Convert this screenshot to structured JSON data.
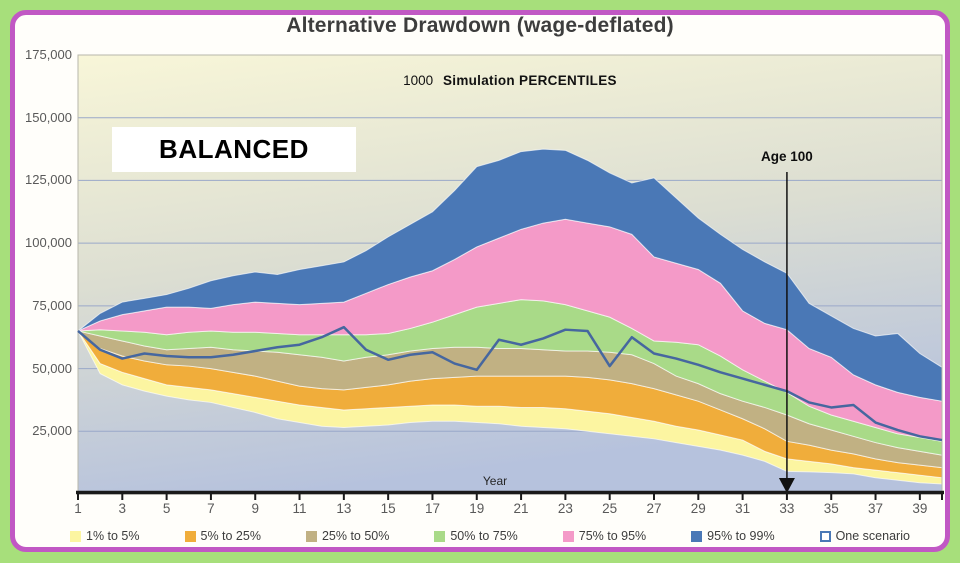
{
  "title": "Alternative Drawdown (wage-deflated)",
  "subtitle": {
    "prefix": "1000",
    "main": "Simulation PERCENTILES"
  },
  "portfolio_label": "BALANCED",
  "annotation": {
    "label": "Age 100",
    "year": 33
  },
  "axes": {
    "x_label": "Year",
    "x_ticks": [
      1,
      3,
      5,
      7,
      9,
      11,
      13,
      15,
      17,
      19,
      21,
      23,
      25,
      27,
      29,
      31,
      33,
      35,
      37,
      39
    ],
    "y_ticks": [
      "175,000",
      "150,000",
      "125,000",
      "100,000",
      "75,000",
      "50,000",
      "25,000"
    ],
    "y_max": 175000,
    "y_step": 25000
  },
  "colors": {
    "page_bg": "#a7df7b",
    "card_border": "#c158c4",
    "card_bg": "#fffefa",
    "plot_gradient": [
      "#f8f6d8",
      "#dcded2",
      "#b6c2dd"
    ],
    "gridline": "#9aa8c9",
    "plot_border": "#b7b7ab",
    "axis": "#1a1a1a",
    "scenario": "#46679f"
  },
  "legend": [
    {
      "label": "1% to 5%",
      "color": "#fcf5a1",
      "swatch": "fill"
    },
    {
      "label": "5% to 25%",
      "color": "#f0ad3b",
      "swatch": "fill"
    },
    {
      "label": "25% to 50%",
      "color": "#c1b183",
      "swatch": "fill"
    },
    {
      "label": "50% to 75%",
      "color": "#a9da88",
      "swatch": "fill"
    },
    {
      "label": "75% to 95%",
      "color": "#f49ac8",
      "swatch": "fill"
    },
    {
      "label": "95% to 99%",
      "color": "#4a78b6",
      "swatch": "fill"
    },
    {
      "label": "One scenario",
      "color": "#4a78b6",
      "swatch": "outline"
    }
  ],
  "chart_data": {
    "type": "area",
    "title": "Alternative Drawdown (wage-deflated)",
    "xlabel": "Year",
    "ylabel": "",
    "ylim": [
      0,
      175000
    ],
    "grid": true,
    "legend_position": "bottom",
    "x": [
      1,
      2,
      3,
      4,
      5,
      6,
      7,
      8,
      9,
      10,
      11,
      12,
      13,
      14,
      15,
      16,
      17,
      18,
      19,
      20,
      21,
      22,
      23,
      24,
      25,
      26,
      27,
      28,
      29,
      30,
      31,
      32,
      33,
      34,
      35,
      36,
      37,
      38,
      39,
      40
    ],
    "percentiles": {
      "p1": [
        65000,
        48000,
        43500,
        41000,
        39000,
        37500,
        36500,
        34500,
        32500,
        30000,
        28500,
        27000,
        26500,
        27000,
        27500,
        28500,
        29000,
        29000,
        28500,
        28000,
        27000,
        26500,
        26000,
        25000,
        24000,
        23000,
        22000,
        20500,
        19000,
        17500,
        15500,
        13000,
        9000,
        8800,
        8500,
        8000,
        6500,
        5500,
        4500,
        4000
      ],
      "p5": [
        65000,
        52000,
        48500,
        46000,
        43500,
        42500,
        41500,
        40000,
        38500,
        37000,
        35500,
        34500,
        33500,
        34000,
        34500,
        35000,
        35500,
        35500,
        35000,
        35000,
        34500,
        34500,
        34000,
        33000,
        32000,
        30500,
        29000,
        27000,
        25500,
        23500,
        21500,
        17000,
        14000,
        13000,
        12000,
        10500,
        9500,
        8500,
        7500,
        6500
      ],
      "p25": [
        65000,
        58000,
        55000,
        53000,
        51500,
        51000,
        50000,
        48500,
        47000,
        45000,
        43000,
        42000,
        41500,
        42500,
        43500,
        45000,
        46000,
        46500,
        47000,
        47000,
        47000,
        47000,
        47000,
        46500,
        45500,
        44000,
        42000,
        39500,
        37000,
        33500,
        30000,
        26000,
        21000,
        19500,
        17500,
        16000,
        14000,
        12500,
        11500,
        10500
      ],
      "p50": [
        65000,
        63000,
        61000,
        59000,
        57500,
        58000,
        58500,
        57500,
        57000,
        56500,
        55500,
        54500,
        53000,
        54500,
        55500,
        57000,
        58000,
        58500,
        58500,
        58000,
        58000,
        57500,
        57000,
        57000,
        56500,
        55500,
        52000,
        47000,
        44000,
        40000,
        37000,
        34500,
        31500,
        28000,
        25500,
        23000,
        20500,
        18500,
        17000,
        15500
      ],
      "p75": [
        65000,
        65500,
        65000,
        64500,
        63500,
        64500,
        65000,
        64500,
        64500,
        64000,
        63500,
        63500,
        63500,
        63500,
        64000,
        66000,
        68500,
        71500,
        74500,
        76000,
        77500,
        77000,
        75500,
        73000,
        70500,
        66000,
        61000,
        60500,
        59500,
        55000,
        49500,
        45000,
        40500,
        35000,
        31500,
        29000,
        26500,
        24000,
        22500,
        21000
      ],
      "p95": [
        65000,
        69000,
        71500,
        73000,
        74500,
        74500,
        74000,
        75500,
        76500,
        76000,
        75500,
        76000,
        76500,
        80000,
        83500,
        86500,
        89000,
        93500,
        98500,
        102000,
        105500,
        108000,
        109500,
        108000,
        106500,
        103500,
        94500,
        92000,
        89500,
        84000,
        73000,
        68000,
        65500,
        58000,
        54500,
        47500,
        43500,
        40500,
        38500,
        37000
      ],
      "p99": [
        65000,
        72000,
        76500,
        78000,
        79500,
        82000,
        85000,
        87000,
        88500,
        87500,
        89500,
        91000,
        92500,
        97000,
        102500,
        107500,
        112500,
        121000,
        130500,
        133000,
        136500,
        137500,
        137000,
        133000,
        128000,
        124000,
        126000,
        118000,
        110000,
        103500,
        97500,
        92500,
        88000,
        76000,
        71000,
        66000,
        63000,
        64000,
        56000,
        50500
      ]
    },
    "bands": [
      {
        "label": "1% to 5%",
        "lower": "p1",
        "upper": "p5",
        "color": "#fcf5a1"
      },
      {
        "label": "5% to 25%",
        "lower": "p5",
        "upper": "p25",
        "color": "#f0ad3b"
      },
      {
        "label": "25% to 50%",
        "lower": "p25",
        "upper": "p50",
        "color": "#c1b183"
      },
      {
        "label": "50% to 75%",
        "lower": "p50",
        "upper": "p75",
        "color": "#a9da88"
      },
      {
        "label": "75% to 95%",
        "lower": "p75",
        "upper": "p95",
        "color": "#f49ac8"
      },
      {
        "label": "95% to 99%",
        "lower": "p95",
        "upper": "p99",
        "color": "#4a78b6"
      }
    ],
    "one_scenario": {
      "label": "One scenario",
      "values": [
        65000,
        57500,
        54000,
        56000,
        55000,
        54500,
        54500,
        55500,
        57000,
        58500,
        59500,
        62500,
        66500,
        57500,
        53500,
        55500,
        56500,
        52000,
        49500,
        61500,
        59500,
        62000,
        65500,
        65000,
        51000,
        62500,
        56000,
        54000,
        51500,
        48500,
        46000,
        43500,
        41000,
        36500,
        34500,
        35500,
        28500,
        25500,
        23000,
        21500
      ]
    }
  }
}
